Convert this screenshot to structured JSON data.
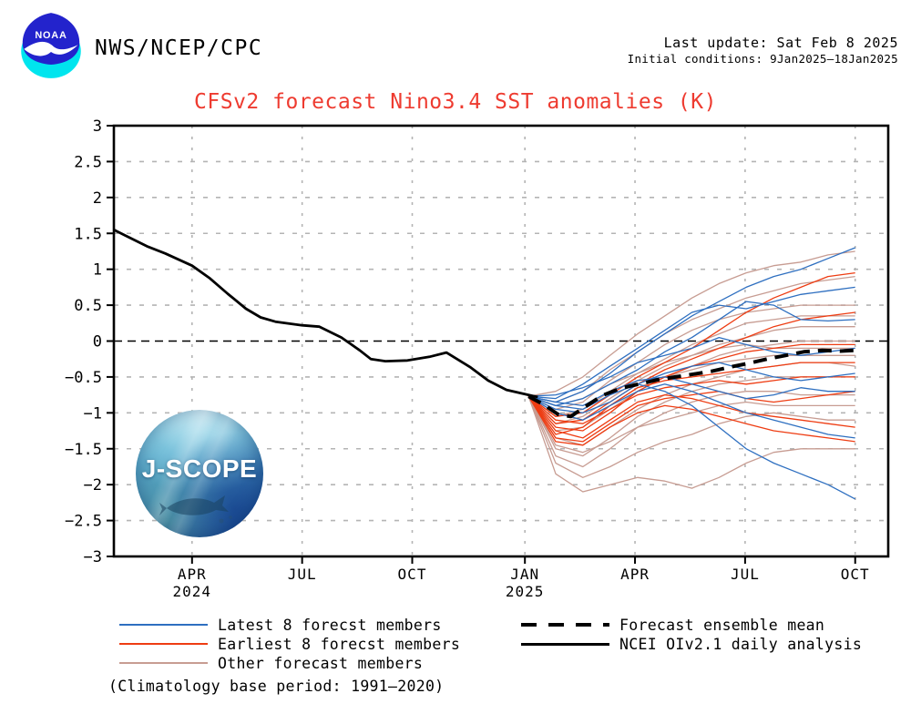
{
  "header": {
    "agency": "NWS/NCEP/CPC",
    "last_update": "Last update: Sat Feb 8 2025",
    "initial_conditions": "Initial conditions: 9Jan2025–18Jan2025",
    "noaa_label": "NOAA"
  },
  "title": "CFSv2 forecast Nino3.4 SST anomalies (K)",
  "watermark": {
    "text": "J-SCOPE"
  },
  "colors": {
    "title": "#ee3b30",
    "latest": "#2e6fc0",
    "earliest": "#ee3c12",
    "other": "#c79c92",
    "mean": "#000000",
    "observed": "#000000",
    "grid": "#b4b4b4",
    "frame": "#000000",
    "text": "#000000"
  },
  "legend": {
    "left": [
      {
        "label": "Latest 8 forecst members",
        "color_key": "latest"
      },
      {
        "label": "Earliest 8 forecst members",
        "color_key": "earliest"
      },
      {
        "label": "Other forecast members",
        "color_key": "other"
      }
    ],
    "right": [
      {
        "label": "Forecast ensemble mean",
        "color_key": "mean",
        "style": "dashed"
      },
      {
        "label": "NCEI OIv2.1 daily analysis",
        "color_key": "observed",
        "style": "solid"
      }
    ],
    "note": "(Climatology base period: 1991–2020)"
  },
  "chart_data": {
    "type": "line",
    "title": "CFSv2 forecast Nino3.4 SST anomalies (K)",
    "ylim": [
      -3,
      3
    ],
    "ytick_labels": [
      "3",
      "2.5",
      "2",
      "1.5",
      "1",
      "0.5",
      "0",
      "−0.5",
      "−1",
      "−1.5",
      "−2",
      "−2.5",
      "−3"
    ],
    "x_months_range": [
      0,
      21.1
    ],
    "x_ticks": [
      {
        "month": 2.13,
        "label": "APR",
        "year": "2024"
      },
      {
        "month": 5.13,
        "label": "JUL"
      },
      {
        "month": 8.13,
        "label": "OCT"
      },
      {
        "month": 11.2,
        "label": "JAN",
        "year": "2025"
      },
      {
        "month": 14.2,
        "label": "APR"
      },
      {
        "month": 17.2,
        "label": "JUL"
      },
      {
        "month": 20.2,
        "label": "OCT"
      }
    ],
    "zero_line": true,
    "grid": "dotted at every 0.5 K and at each 3-month tick",
    "observed_name": "NCEI OIv2.1 daily analysis",
    "observed": [
      [
        0,
        1.55
      ],
      [
        0.35,
        1.46
      ],
      [
        0.9,
        1.32
      ],
      [
        1.4,
        1.22
      ],
      [
        2.13,
        1.05
      ],
      [
        2.6,
        0.88
      ],
      [
        3.1,
        0.66
      ],
      [
        3.6,
        0.45
      ],
      [
        4.0,
        0.33
      ],
      [
        4.4,
        0.27
      ],
      [
        5.13,
        0.22
      ],
      [
        5.6,
        0.2
      ],
      [
        6.2,
        0.05
      ],
      [
        6.7,
        -0.13
      ],
      [
        7.0,
        -0.25
      ],
      [
        7.4,
        -0.28
      ],
      [
        8.0,
        -0.27
      ],
      [
        8.6,
        -0.22
      ],
      [
        9.06,
        -0.16
      ],
      [
        9.7,
        -0.36
      ],
      [
        10.2,
        -0.55
      ],
      [
        10.7,
        -0.68
      ],
      [
        11.2,
        -0.74
      ],
      [
        11.55,
        -0.78
      ]
    ],
    "ensemble_mean": [
      [
        11.3,
        -0.77
      ],
      [
        11.7,
        -0.88
      ],
      [
        12.1,
        -1.02
      ],
      [
        12.45,
        -1.05
      ],
      [
        12.8,
        -0.93
      ],
      [
        13.3,
        -0.76
      ],
      [
        13.8,
        -0.66
      ],
      [
        14.3,
        -0.6
      ],
      [
        14.8,
        -0.54
      ],
      [
        15.3,
        -0.5
      ],
      [
        15.8,
        -0.46
      ],
      [
        16.3,
        -0.42
      ],
      [
        16.8,
        -0.36
      ],
      [
        17.3,
        -0.31
      ],
      [
        17.8,
        -0.25
      ],
      [
        18.3,
        -0.2
      ],
      [
        18.8,
        -0.15
      ],
      [
        19.3,
        -0.13
      ],
      [
        19.8,
        -0.14
      ],
      [
        20.2,
        -0.13
      ]
    ],
    "forecast_months": [
      11.3,
      12.04,
      12.78,
      13.52,
      14.27,
      15.01,
      15.75,
      16.49,
      17.23,
      17.98,
      18.72,
      19.46,
      20.2
    ],
    "members": {
      "latest_8": [
        [
          -0.77,
          -0.85,
          -0.7,
          -0.45,
          -0.15,
          0.1,
          0.35,
          0.55,
          0.75,
          0.9,
          1.0,
          1.15,
          1.3
        ],
        [
          -0.77,
          -0.8,
          -0.6,
          -0.35,
          -0.1,
          0.15,
          0.4,
          0.5,
          0.45,
          0.55,
          0.65,
          0.7,
          0.75
        ],
        [
          -0.77,
          -0.9,
          -0.8,
          -0.6,
          -0.4,
          -0.15,
          0.05,
          0.3,
          0.55,
          0.5,
          0.3,
          0.28,
          0.3
        ],
        [
          -0.77,
          -0.75,
          -0.65,
          -0.5,
          -0.3,
          -0.2,
          -0.1,
          0.05,
          -0.05,
          -0.15,
          -0.2,
          -0.15,
          -0.1
        ],
        [
          -0.77,
          -0.95,
          -1.0,
          -0.85,
          -0.6,
          -0.45,
          -0.35,
          -0.3,
          -0.4,
          -0.5,
          -0.55,
          -0.5,
          -0.45
        ],
        [
          -0.77,
          -0.85,
          -0.9,
          -0.7,
          -0.55,
          -0.5,
          -0.6,
          -0.7,
          -0.8,
          -0.75,
          -0.65,
          -0.7,
          -0.7
        ],
        [
          -0.77,
          -1.0,
          -1.1,
          -0.9,
          -0.7,
          -0.6,
          -0.7,
          -0.85,
          -1.0,
          -1.1,
          -1.2,
          -1.3,
          -1.35
        ],
        [
          -0.77,
          -0.9,
          -0.95,
          -0.75,
          -0.6,
          -0.7,
          -0.9,
          -1.2,
          -1.5,
          -1.7,
          -1.85,
          -2.0,
          -2.2
        ]
      ],
      "earliest_8": [
        [
          -0.77,
          -1.05,
          -1.0,
          -0.75,
          -0.5,
          -0.3,
          -0.1,
          0.15,
          0.4,
          0.6,
          0.75,
          0.9,
          0.95
        ],
        [
          -0.77,
          -1.15,
          -1.1,
          -0.85,
          -0.6,
          -0.4,
          -0.25,
          -0.1,
          0.05,
          0.2,
          0.3,
          0.35,
          0.4
        ],
        [
          -0.77,
          -1.2,
          -1.25,
          -1.0,
          -0.7,
          -0.5,
          -0.35,
          -0.25,
          -0.15,
          -0.1,
          -0.05,
          -0.05,
          -0.05
        ],
        [
          -0.77,
          -1.3,
          -1.2,
          -0.9,
          -0.65,
          -0.55,
          -0.5,
          -0.45,
          -0.4,
          -0.35,
          -0.3,
          -0.3,
          -0.3
        ],
        [
          -0.77,
          -1.1,
          -1.15,
          -0.95,
          -0.75,
          -0.65,
          -0.6,
          -0.55,
          -0.6,
          -0.55,
          -0.5,
          -0.5,
          -0.5
        ],
        [
          -0.77,
          -1.35,
          -1.4,
          -1.15,
          -0.9,
          -0.8,
          -0.75,
          -0.7,
          -0.8,
          -0.85,
          -0.8,
          -0.75,
          -0.7
        ],
        [
          -0.77,
          -1.25,
          -1.35,
          -1.1,
          -0.85,
          -0.75,
          -0.8,
          -0.9,
          -1.0,
          -1.05,
          -1.1,
          -1.15,
          -1.2
        ],
        [
          -0.77,
          -1.4,
          -1.45,
          -1.2,
          -1.0,
          -0.9,
          -0.95,
          -1.05,
          -1.15,
          -1.25,
          -1.3,
          -1.35,
          -1.4
        ]
      ],
      "other": [
        [
          -0.77,
          -0.7,
          -0.5,
          -0.2,
          0.1,
          0.35,
          0.6,
          0.8,
          0.95,
          1.05,
          1.1,
          1.2,
          1.25
        ],
        [
          -0.77,
          -0.85,
          -0.7,
          -0.4,
          -0.15,
          0.1,
          0.3,
          0.45,
          0.6,
          0.7,
          0.8,
          0.85,
          0.9
        ],
        [
          -0.77,
          -0.95,
          -0.85,
          -0.55,
          -0.3,
          -0.05,
          0.15,
          0.3,
          0.4,
          0.45,
          0.5,
          0.5,
          0.5
        ],
        [
          -0.77,
          -1.05,
          -0.95,
          -0.7,
          -0.45,
          -0.25,
          -0.05,
          0.1,
          0.25,
          0.3,
          0.35,
          0.35,
          0.35
        ],
        [
          -0.77,
          -1.15,
          -1.05,
          -0.8,
          -0.55,
          -0.35,
          -0.2,
          -0.05,
          0.05,
          0.15,
          0.2,
          0.2,
          0.2
        ],
        [
          -0.77,
          -1.25,
          -1.2,
          -0.95,
          -0.7,
          -0.5,
          -0.35,
          -0.2,
          -0.1,
          -0.05,
          0.0,
          0.0,
          0.0
        ],
        [
          -0.77,
          -0.9,
          -0.8,
          -0.6,
          -0.45,
          -0.3,
          -0.2,
          -0.1,
          -0.05,
          -0.1,
          -0.1,
          -0.1,
          -0.1
        ],
        [
          -0.77,
          -1.0,
          -1.1,
          -0.9,
          -0.65,
          -0.5,
          -0.4,
          -0.3,
          -0.25,
          -0.2,
          -0.2,
          -0.2,
          -0.2
        ],
        [
          -0.77,
          -1.35,
          -1.45,
          -1.2,
          -0.95,
          -0.75,
          -0.6,
          -0.5,
          -0.4,
          -0.35,
          -0.3,
          -0.3,
          -0.35
        ],
        [
          -0.77,
          -1.5,
          -1.6,
          -1.35,
          -1.05,
          -0.85,
          -0.7,
          -0.6,
          -0.55,
          -0.5,
          -0.5,
          -0.5,
          -0.5
        ],
        [
          -0.77,
          -1.6,
          -1.75,
          -1.5,
          -1.2,
          -1.0,
          -0.85,
          -0.75,
          -0.7,
          -0.7,
          -0.75,
          -0.75,
          -0.75
        ],
        [
          -0.77,
          -1.45,
          -1.55,
          -1.4,
          -1.2,
          -1.1,
          -1.0,
          -0.9,
          -0.85,
          -0.9,
          -0.9,
          -0.9,
          -0.9
        ],
        [
          -0.77,
          -1.7,
          -1.9,
          -1.75,
          -1.55,
          -1.4,
          -1.3,
          -1.15,
          -1.05,
          -1.0,
          -1.05,
          -1.1,
          -1.1
        ],
        [
          -0.77,
          -1.85,
          -2.1,
          -2.0,
          -1.9,
          -1.95,
          -2.05,
          -1.9,
          -1.7,
          -1.55,
          -1.5,
          -1.5,
          -1.5
        ]
      ]
    },
    "legend_position": "below chart, two columns"
  }
}
